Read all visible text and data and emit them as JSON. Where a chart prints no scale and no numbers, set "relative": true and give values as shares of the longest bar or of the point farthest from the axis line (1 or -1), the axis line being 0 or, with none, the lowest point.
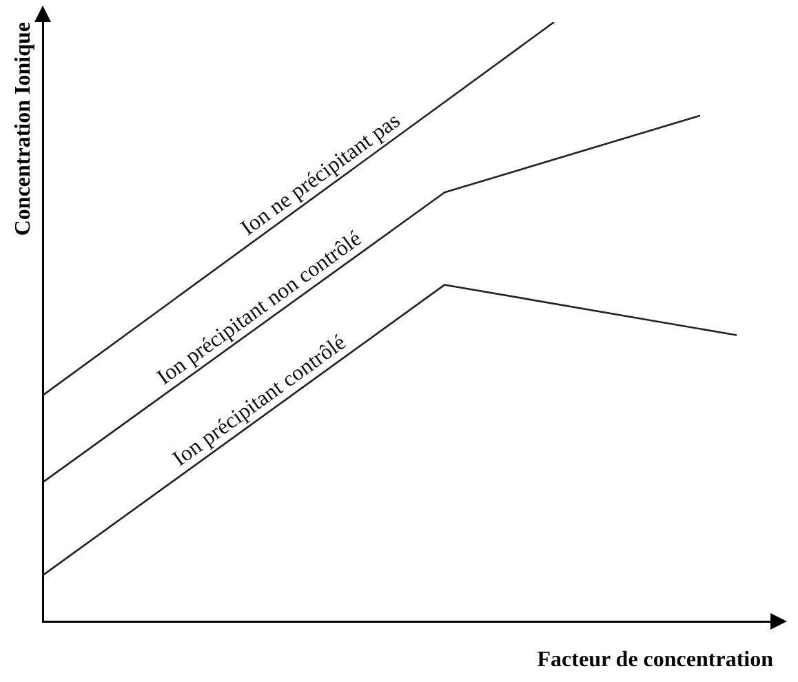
{
  "chart_data": {
    "type": "line",
    "relative": true,
    "xlabel": "Facteur de concentration",
    "ylabel": "Concentration Ionique",
    "legend": false,
    "marker": "none",
    "line_style": "solid",
    "categories": [
      null,
      null,
      null,
      null,
      null,
      null,
      null,
      null,
      null,
      null,
      null,
      null,
      null,
      null,
      null,
      null,
      null,
      null,
      null,
      null,
      null
    ],
    "series": [
      {
        "name": "Ion ne précipitant pas",
        "color": "#222222",
        "values": [
          0.378,
          null,
          null,
          null,
          null,
          null,
          null,
          null,
          null,
          null,
          null,
          null,
          null,
          null,
          1,
          null,
          null,
          null,
          null,
          null,
          null
        ]
      },
      {
        "name": "Ion précipitant non contrôlé",
        "color": "#222222",
        "values": [
          0.233,
          null,
          null,
          null,
          null,
          null,
          null,
          null,
          null,
          null,
          null,
          0.716,
          null,
          null,
          null,
          null,
          null,
          null,
          0.844,
          null,
          null
        ]
      },
      {
        "name": "Ion précipitant contrôlé",
        "color": "#222222",
        "values": [
          0.078,
          null,
          null,
          null,
          null,
          null,
          null,
          null,
          null,
          null,
          null,
          0.562,
          null,
          null,
          null,
          null,
          null,
          null,
          null,
          0.478,
          null
        ]
      }
    ]
  }
}
